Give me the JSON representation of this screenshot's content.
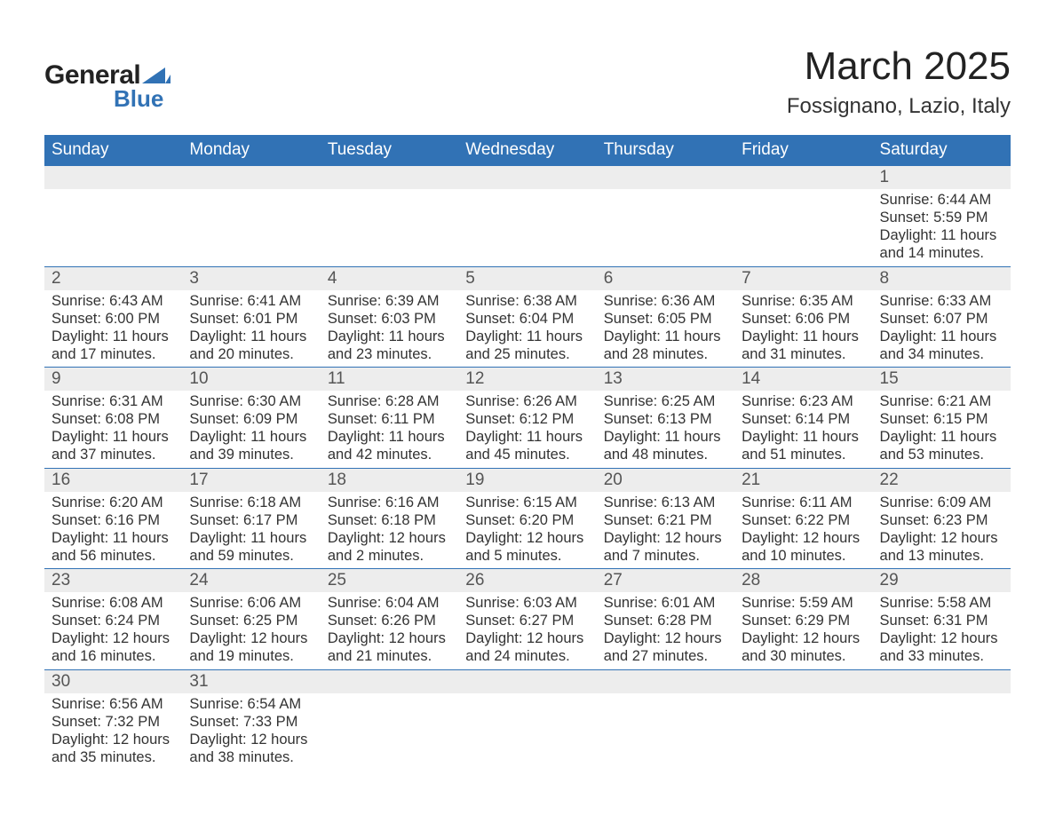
{
  "logo": {
    "text1": "General",
    "text2": "Blue",
    "accent_color": "#3172b5"
  },
  "title": "March 2025",
  "location": "Fossignano, Lazio, Italy",
  "colors": {
    "header_bg": "#3172b5",
    "header_text": "#ffffff",
    "daynum_bg": "#ededed",
    "daynum_text": "#555555",
    "body_text": "#333333",
    "row_border": "#3172b5"
  },
  "fonts": {
    "title_pt": 44,
    "location_pt": 24,
    "header_pt": 19,
    "daynum_pt": 19,
    "body_pt": 16.5
  },
  "weekdays": [
    "Sunday",
    "Monday",
    "Tuesday",
    "Wednesday",
    "Thursday",
    "Friday",
    "Saturday"
  ],
  "weeks": [
    [
      null,
      null,
      null,
      null,
      null,
      null,
      {
        "n": "1",
        "sr": "Sunrise: 6:44 AM",
        "ss": "Sunset: 5:59 PM",
        "d1": "Daylight: 11 hours",
        "d2": "and 14 minutes."
      }
    ],
    [
      {
        "n": "2",
        "sr": "Sunrise: 6:43 AM",
        "ss": "Sunset: 6:00 PM",
        "d1": "Daylight: 11 hours",
        "d2": "and 17 minutes."
      },
      {
        "n": "3",
        "sr": "Sunrise: 6:41 AM",
        "ss": "Sunset: 6:01 PM",
        "d1": "Daylight: 11 hours",
        "d2": "and 20 minutes."
      },
      {
        "n": "4",
        "sr": "Sunrise: 6:39 AM",
        "ss": "Sunset: 6:03 PM",
        "d1": "Daylight: 11 hours",
        "d2": "and 23 minutes."
      },
      {
        "n": "5",
        "sr": "Sunrise: 6:38 AM",
        "ss": "Sunset: 6:04 PM",
        "d1": "Daylight: 11 hours",
        "d2": "and 25 minutes."
      },
      {
        "n": "6",
        "sr": "Sunrise: 6:36 AM",
        "ss": "Sunset: 6:05 PM",
        "d1": "Daylight: 11 hours",
        "d2": "and 28 minutes."
      },
      {
        "n": "7",
        "sr": "Sunrise: 6:35 AM",
        "ss": "Sunset: 6:06 PM",
        "d1": "Daylight: 11 hours",
        "d2": "and 31 minutes."
      },
      {
        "n": "8",
        "sr": "Sunrise: 6:33 AM",
        "ss": "Sunset: 6:07 PM",
        "d1": "Daylight: 11 hours",
        "d2": "and 34 minutes."
      }
    ],
    [
      {
        "n": "9",
        "sr": "Sunrise: 6:31 AM",
        "ss": "Sunset: 6:08 PM",
        "d1": "Daylight: 11 hours",
        "d2": "and 37 minutes."
      },
      {
        "n": "10",
        "sr": "Sunrise: 6:30 AM",
        "ss": "Sunset: 6:09 PM",
        "d1": "Daylight: 11 hours",
        "d2": "and 39 minutes."
      },
      {
        "n": "11",
        "sr": "Sunrise: 6:28 AM",
        "ss": "Sunset: 6:11 PM",
        "d1": "Daylight: 11 hours",
        "d2": "and 42 minutes."
      },
      {
        "n": "12",
        "sr": "Sunrise: 6:26 AM",
        "ss": "Sunset: 6:12 PM",
        "d1": "Daylight: 11 hours",
        "d2": "and 45 minutes."
      },
      {
        "n": "13",
        "sr": "Sunrise: 6:25 AM",
        "ss": "Sunset: 6:13 PM",
        "d1": "Daylight: 11 hours",
        "d2": "and 48 minutes."
      },
      {
        "n": "14",
        "sr": "Sunrise: 6:23 AM",
        "ss": "Sunset: 6:14 PM",
        "d1": "Daylight: 11 hours",
        "d2": "and 51 minutes."
      },
      {
        "n": "15",
        "sr": "Sunrise: 6:21 AM",
        "ss": "Sunset: 6:15 PM",
        "d1": "Daylight: 11 hours",
        "d2": "and 53 minutes."
      }
    ],
    [
      {
        "n": "16",
        "sr": "Sunrise: 6:20 AM",
        "ss": "Sunset: 6:16 PM",
        "d1": "Daylight: 11 hours",
        "d2": "and 56 minutes."
      },
      {
        "n": "17",
        "sr": "Sunrise: 6:18 AM",
        "ss": "Sunset: 6:17 PM",
        "d1": "Daylight: 11 hours",
        "d2": "and 59 minutes."
      },
      {
        "n": "18",
        "sr": "Sunrise: 6:16 AM",
        "ss": "Sunset: 6:18 PM",
        "d1": "Daylight: 12 hours",
        "d2": "and 2 minutes."
      },
      {
        "n": "19",
        "sr": "Sunrise: 6:15 AM",
        "ss": "Sunset: 6:20 PM",
        "d1": "Daylight: 12 hours",
        "d2": "and 5 minutes."
      },
      {
        "n": "20",
        "sr": "Sunrise: 6:13 AM",
        "ss": "Sunset: 6:21 PM",
        "d1": "Daylight: 12 hours",
        "d2": "and 7 minutes."
      },
      {
        "n": "21",
        "sr": "Sunrise: 6:11 AM",
        "ss": "Sunset: 6:22 PM",
        "d1": "Daylight: 12 hours",
        "d2": "and 10 minutes."
      },
      {
        "n": "22",
        "sr": "Sunrise: 6:09 AM",
        "ss": "Sunset: 6:23 PM",
        "d1": "Daylight: 12 hours",
        "d2": "and 13 minutes."
      }
    ],
    [
      {
        "n": "23",
        "sr": "Sunrise: 6:08 AM",
        "ss": "Sunset: 6:24 PM",
        "d1": "Daylight: 12 hours",
        "d2": "and 16 minutes."
      },
      {
        "n": "24",
        "sr": "Sunrise: 6:06 AM",
        "ss": "Sunset: 6:25 PM",
        "d1": "Daylight: 12 hours",
        "d2": "and 19 minutes."
      },
      {
        "n": "25",
        "sr": "Sunrise: 6:04 AM",
        "ss": "Sunset: 6:26 PM",
        "d1": "Daylight: 12 hours",
        "d2": "and 21 minutes."
      },
      {
        "n": "26",
        "sr": "Sunrise: 6:03 AM",
        "ss": "Sunset: 6:27 PM",
        "d1": "Daylight: 12 hours",
        "d2": "and 24 minutes."
      },
      {
        "n": "27",
        "sr": "Sunrise: 6:01 AM",
        "ss": "Sunset: 6:28 PM",
        "d1": "Daylight: 12 hours",
        "d2": "and 27 minutes."
      },
      {
        "n": "28",
        "sr": "Sunrise: 5:59 AM",
        "ss": "Sunset: 6:29 PM",
        "d1": "Daylight: 12 hours",
        "d2": "and 30 minutes."
      },
      {
        "n": "29",
        "sr": "Sunrise: 5:58 AM",
        "ss": "Sunset: 6:31 PM",
        "d1": "Daylight: 12 hours",
        "d2": "and 33 minutes."
      }
    ],
    [
      {
        "n": "30",
        "sr": "Sunrise: 6:56 AM",
        "ss": "Sunset: 7:32 PM",
        "d1": "Daylight: 12 hours",
        "d2": "and 35 minutes."
      },
      {
        "n": "31",
        "sr": "Sunrise: 6:54 AM",
        "ss": "Sunset: 7:33 PM",
        "d1": "Daylight: 12 hours",
        "d2": "and 38 minutes."
      },
      null,
      null,
      null,
      null,
      null
    ]
  ]
}
